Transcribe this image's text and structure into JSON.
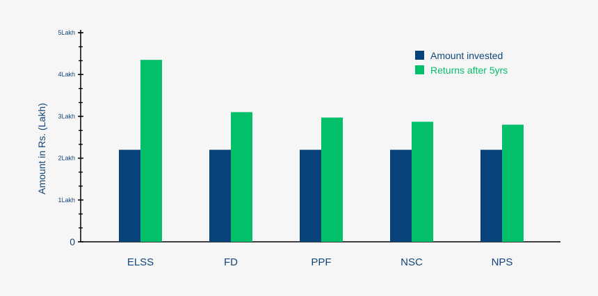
{
  "chart_data": {
    "type": "bar",
    "ylabel": "Amount in Rs. (Lakh)",
    "xlabel": "",
    "title": "",
    "categories": [
      "ELSS",
      "FD",
      "PPF",
      "NSC",
      "NPS"
    ],
    "series": [
      {
        "name": "Amount invested",
        "color": "#07427a",
        "values": [
          2.2,
          2.2,
          2.2,
          2.2,
          2.2
        ]
      },
      {
        "name": "Returns after 5yrs",
        "color": "#03bf6a",
        "values": [
          4.35,
          3.1,
          2.97,
          2.87,
          2.8
        ]
      }
    ],
    "ylim": [
      0,
      5
    ],
    "yticks": [
      {
        "value": 0,
        "label": "0"
      },
      {
        "value": 1,
        "label": "1Lakh"
      },
      {
        "value": 2,
        "label": "2Lakh"
      },
      {
        "value": 3,
        "label": "3Lakh"
      },
      {
        "value": 4,
        "label": "4Lakh"
      },
      {
        "value": 5,
        "label": "5Lakh"
      }
    ],
    "minor_tick_step": 0.333,
    "grid": false,
    "legend_position": "top-right",
    "text_color": "#12457a",
    "axis_color": "#000000"
  }
}
